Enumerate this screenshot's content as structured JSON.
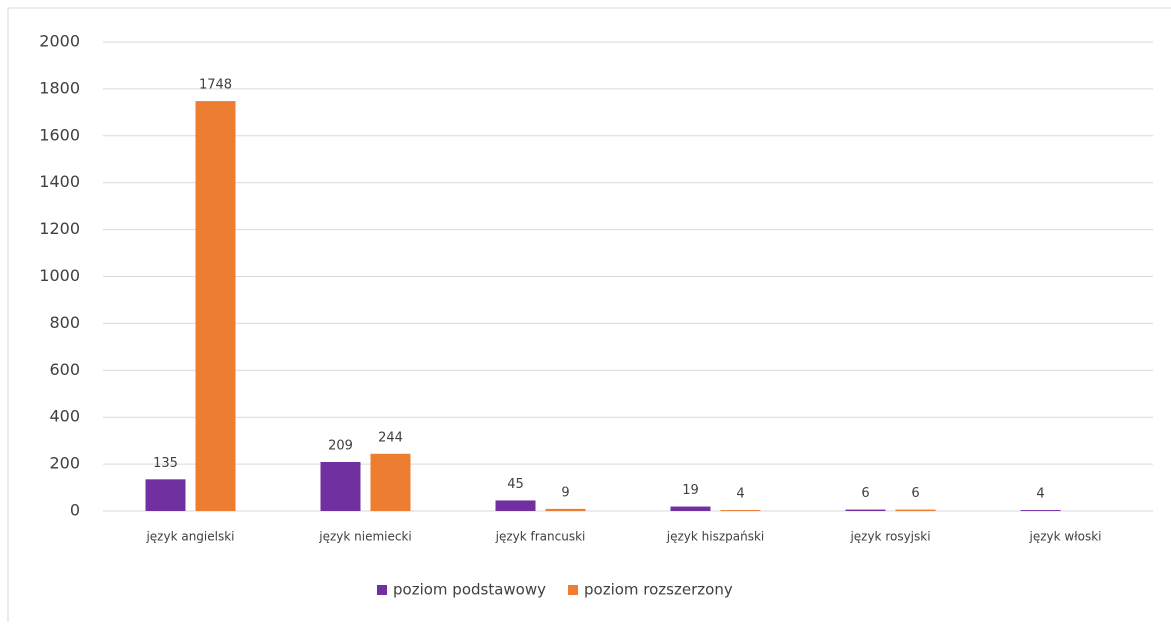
{
  "chart_data": {
    "type": "bar",
    "categories": [
      "język angielski",
      "język niemiecki",
      "język francuski",
      "język hiszpański",
      "język rosyjski",
      "język włoski"
    ],
    "series": [
      {
        "name": "poziom podstawowy",
        "color": "#7030a0",
        "values": [
          135,
          209,
          45,
          19,
          6,
          4
        ]
      },
      {
        "name": "poziom rozszerzony",
        "color": "#ed7d31",
        "values": [
          1748,
          244,
          9,
          4,
          6,
          null
        ]
      }
    ],
    "ylim": [
      0,
      2000
    ],
    "yticks": [
      0,
      200,
      400,
      600,
      800,
      1000,
      1200,
      1400,
      1600,
      1800,
      2000
    ],
    "grid": true,
    "legend": "bottom"
  }
}
